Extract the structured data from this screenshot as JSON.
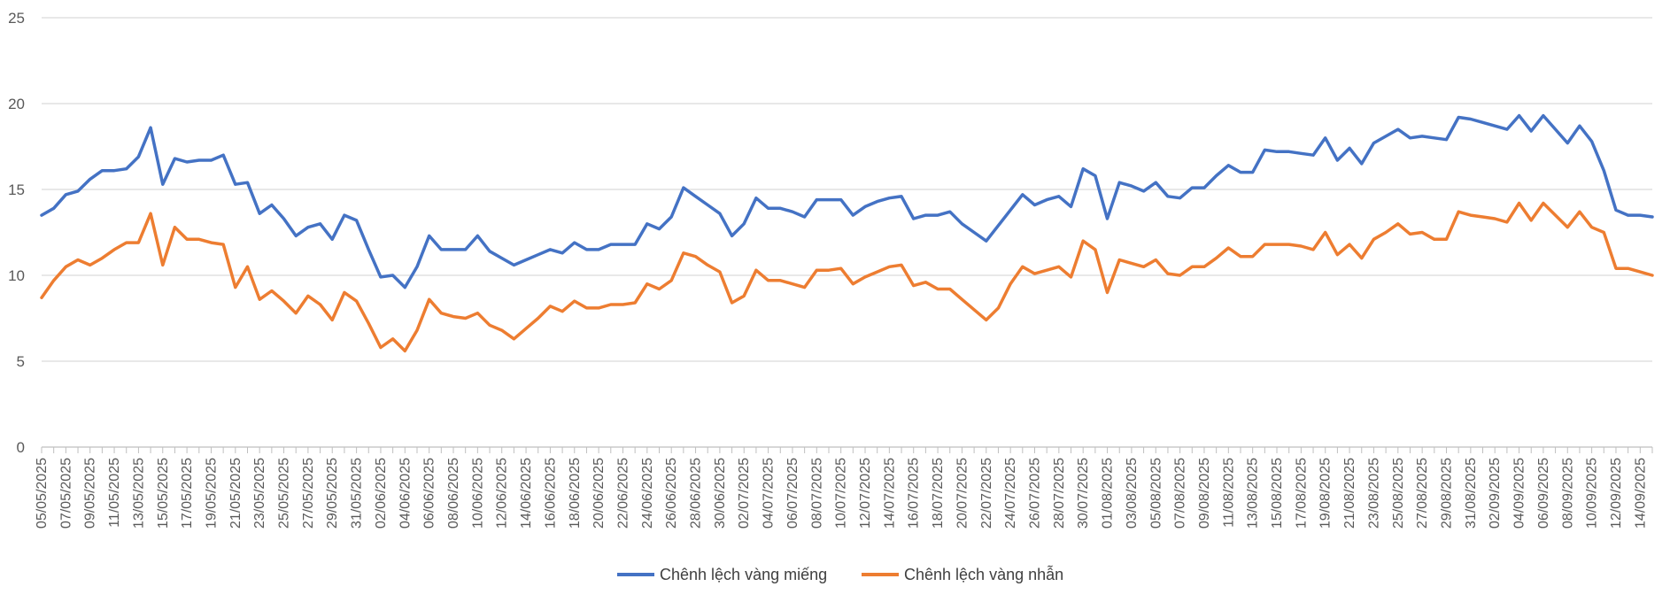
{
  "chart_data": {
    "type": "line",
    "title": "",
    "xlabel": "",
    "ylabel": "",
    "ylim": [
      0,
      25
    ],
    "yticks": [
      0,
      5,
      10,
      15,
      20,
      25
    ],
    "grid": "horizontal",
    "legend": "bottom-center",
    "x": [
      "05/05/2025",
      "06/05/2025",
      "07/05/2025",
      "08/05/2025",
      "09/05/2025",
      "10/05/2025",
      "11/05/2025",
      "12/05/2025",
      "13/05/2025",
      "14/05/2025",
      "15/05/2025",
      "16/05/2025",
      "17/05/2025",
      "18/05/2025",
      "19/05/2025",
      "20/05/2025",
      "21/05/2025",
      "22/05/2025",
      "23/05/2025",
      "24/05/2025",
      "25/05/2025",
      "26/05/2025",
      "27/05/2025",
      "28/05/2025",
      "29/05/2025",
      "30/05/2025",
      "31/05/2025",
      "01/06/2025",
      "02/06/2025",
      "03/06/2025",
      "04/06/2025",
      "05/06/2025",
      "06/06/2025",
      "07/06/2025",
      "08/06/2025",
      "09/06/2025",
      "10/06/2025",
      "11/06/2025",
      "12/06/2025",
      "13/06/2025",
      "14/06/2025",
      "15/06/2025",
      "16/06/2025",
      "17/06/2025",
      "18/06/2025",
      "19/06/2025",
      "20/06/2025",
      "21/06/2025",
      "22/06/2025",
      "23/06/2025",
      "24/06/2025",
      "25/06/2025",
      "26/06/2025",
      "27/06/2025",
      "28/06/2025",
      "29/06/2025",
      "30/06/2025",
      "01/07/2025",
      "02/07/2025",
      "03/07/2025",
      "04/07/2025",
      "05/07/2025",
      "06/07/2025",
      "07/07/2025",
      "08/07/2025",
      "09/07/2025",
      "10/07/2025",
      "11/07/2025",
      "12/07/2025",
      "13/07/2025",
      "14/07/2025",
      "15/07/2025",
      "16/07/2025",
      "17/07/2025",
      "18/07/2025",
      "19/07/2025",
      "20/07/2025",
      "21/07/2025",
      "22/07/2025",
      "23/07/2025",
      "24/07/2025",
      "25/07/2025",
      "26/07/2025",
      "27/07/2025",
      "28/07/2025",
      "29/07/2025",
      "30/07/2025",
      "31/07/2025",
      "01/08/2025",
      "02/08/2025",
      "03/08/2025",
      "04/08/2025",
      "05/08/2025",
      "06/08/2025",
      "07/08/2025",
      "08/08/2025",
      "09/08/2025",
      "10/08/2025",
      "11/08/2025",
      "12/08/2025",
      "13/08/2025",
      "14/08/2025",
      "15/08/2025",
      "16/08/2025",
      "17/08/2025",
      "18/08/2025",
      "19/08/2025",
      "20/08/2025",
      "21/08/2025",
      "22/08/2025",
      "23/08/2025",
      "24/08/2025",
      "25/08/2025",
      "26/08/2025",
      "27/08/2025",
      "28/08/2025",
      "29/08/2025",
      "30/08/2025",
      "31/08/2025",
      "01/09/2025",
      "02/09/2025",
      "03/09/2025",
      "04/09/2025",
      "05/09/2025",
      "06/09/2025",
      "07/09/2025",
      "08/09/2025",
      "09/09/2025",
      "10/09/2025",
      "11/09/2025",
      "12/09/2025",
      "13/09/2025",
      "14/09/2025",
      "15/09/2025"
    ],
    "x_tick_labels": [
      "05/05/2025",
      "07/05/2025",
      "09/05/2025",
      "11/05/2025",
      "13/05/2025",
      "15/05/2025",
      "17/05/2025",
      "19/05/2025",
      "21/05/2025",
      "23/05/2025",
      "25/05/2025",
      "27/05/2025",
      "29/05/2025",
      "31/05/2025",
      "02/06/2025",
      "04/06/2025",
      "06/06/2025",
      "08/06/2025",
      "10/06/2025",
      "12/06/2025",
      "14/06/2025",
      "16/06/2025",
      "18/06/2025",
      "20/06/2025",
      "22/06/2025",
      "24/06/2025",
      "26/06/2025",
      "28/06/2025",
      "30/06/2025",
      "02/07/2025",
      "04/07/2025",
      "06/07/2025",
      "08/07/2025",
      "10/07/2025",
      "12/07/2025",
      "14/07/2025",
      "16/07/2025",
      "18/07/2025",
      "20/07/2025",
      "22/07/2025",
      "24/07/2025",
      "26/07/2025",
      "28/07/2025",
      "30/07/2025",
      "01/08/2025",
      "03/08/2025",
      "05/08/2025",
      "07/08/2025",
      "09/08/2025",
      "11/08/2025",
      "13/08/2025",
      "15/08/2025",
      "17/08/2025",
      "19/08/2025",
      "21/08/2025",
      "23/08/2025",
      "25/08/2025",
      "27/08/2025",
      "29/08/2025",
      "31/08/2025",
      "02/09/2025",
      "04/09/2025",
      "06/09/2025",
      "08/09/2025",
      "10/09/2025",
      "12/09/2025",
      "14/09/2025"
    ],
    "series": [
      {
        "name": "Chênh lệch vàng miếng",
        "color": "#4472C4",
        "values": [
          13.5,
          13.9,
          14.7,
          14.9,
          15.6,
          16.1,
          16.1,
          16.2,
          16.9,
          18.6,
          15.3,
          16.8,
          16.6,
          16.7,
          16.7,
          17.0,
          15.3,
          15.4,
          13.6,
          14.1,
          13.3,
          12.3,
          12.8,
          13.0,
          12.1,
          13.5,
          13.2,
          11.5,
          9.9,
          10.0,
          9.3,
          10.5,
          12.3,
          11.5,
          11.5,
          11.5,
          12.3,
          11.4,
          11.0,
          10.6,
          10.9,
          11.2,
          11.5,
          11.3,
          11.9,
          11.5,
          11.5,
          11.8,
          11.8,
          11.8,
          13.0,
          12.7,
          13.4,
          15.1,
          14.6,
          14.1,
          13.6,
          12.3,
          13.0,
          14.5,
          13.9,
          13.9,
          13.7,
          13.4,
          14.4,
          14.4,
          14.4,
          13.5,
          14.0,
          14.3,
          14.5,
          14.6,
          13.3,
          13.5,
          13.5,
          13.7,
          13.0,
          12.5,
          12.0,
          12.9,
          13.8,
          14.7,
          14.1,
          14.4,
          14.6,
          14.0,
          16.2,
          15.8,
          13.3,
          15.4,
          15.2,
          14.9,
          15.4,
          14.6,
          14.5,
          15.1,
          15.1,
          15.8,
          16.4,
          16.0,
          16.0,
          17.3,
          17.2,
          17.2,
          17.1,
          17.0,
          18.0,
          16.7,
          17.4,
          16.5,
          17.7,
          18.1,
          18.5,
          18.0,
          18.1,
          18.0,
          17.9,
          19.2,
          19.1,
          18.9,
          18.7,
          18.5,
          19.3,
          18.4,
          19.3,
          18.5,
          17.7,
          18.7,
          17.8,
          16.1,
          13.8,
          13.5,
          13.5,
          13.4
        ]
      },
      {
        "name": "Chênh lệch vàng nhẫn",
        "color": "#ED7D31",
        "values": [
          8.7,
          9.7,
          10.5,
          10.9,
          10.6,
          11.0,
          11.5,
          11.9,
          11.9,
          13.6,
          10.6,
          12.8,
          12.1,
          12.1,
          11.9,
          11.8,
          9.3,
          10.5,
          8.6,
          9.1,
          8.5,
          7.8,
          8.8,
          8.3,
          7.4,
          9.0,
          8.5,
          7.2,
          5.8,
          6.3,
          5.6,
          6.8,
          8.6,
          7.8,
          7.6,
          7.5,
          7.8,
          7.1,
          6.8,
          6.3,
          6.9,
          7.5,
          8.2,
          7.9,
          8.5,
          8.1,
          8.1,
          8.3,
          8.3,
          8.4,
          9.5,
          9.2,
          9.7,
          11.3,
          11.1,
          10.6,
          10.2,
          8.4,
          8.8,
          10.3,
          9.7,
          9.7,
          9.5,
          9.3,
          10.3,
          10.3,
          10.4,
          9.5,
          9.9,
          10.2,
          10.5,
          10.6,
          9.4,
          9.6,
          9.2,
          9.2,
          8.6,
          8.0,
          7.4,
          8.1,
          9.5,
          10.5,
          10.1,
          10.3,
          10.5,
          9.9,
          12.0,
          11.5,
          9.0,
          10.9,
          10.7,
          10.5,
          10.9,
          10.1,
          10.0,
          10.5,
          10.5,
          11.0,
          11.6,
          11.1,
          11.1,
          11.8,
          11.8,
          11.8,
          11.7,
          11.5,
          12.5,
          11.2,
          11.8,
          11.0,
          12.1,
          12.5,
          13.0,
          12.4,
          12.5,
          12.1,
          12.1,
          13.7,
          13.5,
          13.4,
          13.3,
          13.1,
          14.2,
          13.2,
          14.2,
          13.5,
          12.8,
          13.7,
          12.8,
          12.5,
          10.4,
          10.4,
          10.2,
          10.0
        ]
      }
    ]
  }
}
